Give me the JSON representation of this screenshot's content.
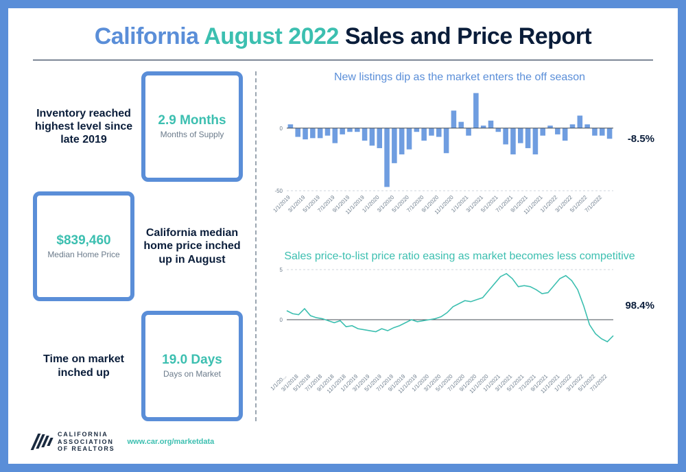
{
  "title": {
    "pre": "California ",
    "accent": "August 2022",
    "post": " Sales and Price Report"
  },
  "stats": {
    "inventory": {
      "text": "Inventory reached highest level since late 2019",
      "value": "2.9 Months",
      "label": "Months of Supply"
    },
    "median": {
      "text": "California median home price inched up in August",
      "value": "$839,460",
      "label": "Median Home Price"
    },
    "days": {
      "text": "Time on market inched up",
      "value": "19.0 Days",
      "label": "Days on Market"
    }
  },
  "chart1": {
    "type": "bar",
    "title": "New listings dip as the market enters the off season",
    "title_color": "#5a8ed8",
    "bar_color": "#6f9de0",
    "grid_color": "#cfd6dd",
    "axis_color": "#444c56",
    "end_label": "-8.5%",
    "ylim": [
      -50,
      30
    ],
    "yticks": [
      -50,
      0
    ],
    "categories": [
      "1/1/2019",
      "3/1/2019",
      "5/1/2019",
      "7/1/2019",
      "9/1/2019",
      "11/1/2019",
      "1/1/2020",
      "3/1/2020",
      "5/1/2020",
      "7/1/2020",
      "9/1/2020",
      "11/1/2020",
      "1/1/2021",
      "3/1/2021",
      "5/1/2021",
      "7/1/2021",
      "9/1/2021",
      "11/1/2021",
      "1/1/2022",
      "3/1/2022",
      "5/1/2022",
      "7/1/2022"
    ],
    "values": [
      3,
      -7,
      -9,
      -8,
      -8,
      -6,
      -12,
      -5,
      -3,
      -3,
      -10,
      -14,
      -16,
      -47,
      -28,
      -21,
      -17,
      -3,
      -10,
      -6,
      -7,
      -20,
      14,
      5,
      -6,
      28,
      2,
      6,
      -3,
      -13,
      -21,
      -12,
      -16,
      -21,
      -6,
      2,
      -5,
      -10,
      3,
      10,
      3,
      -6,
      -6,
      -8.5
    ]
  },
  "chart2": {
    "type": "line",
    "title": "Sales price-to-list price ratio easing as market becomes less competitive",
    "title_color": "#3cbfb0",
    "line_color": "#3cbfb0",
    "grid_color": "#cfd6dd",
    "axis_color": "#444c56",
    "end_label": "98.4%",
    "ylim": [
      -5,
      5
    ],
    "yticks": [
      0,
      5
    ],
    "categories": [
      "1/1/20...",
      "3/1/2018",
      "5/1/2018",
      "7/1/2018",
      "9/1/2018",
      "11/1/2018",
      "1/1/2019",
      "3/1/2019",
      "5/1/2019",
      "7/1/2019",
      "9/1/2019",
      "11/1/2019",
      "1/1/2020",
      "3/1/2020",
      "5/1/2020",
      "7/1/2020",
      "9/1/2020",
      "11/1/2020",
      "1/1/2021",
      "3/1/2021",
      "5/1/2021",
      "7/1/2021",
      "9/1/2021",
      "11/1/2021",
      "1/1/2022",
      "3/1/2022",
      "5/1/2022",
      "7/1/2022"
    ],
    "values": [
      0.9,
      0.6,
      0.5,
      1.1,
      0.4,
      0.2,
      0.1,
      -0.1,
      -0.3,
      -0.1,
      -0.7,
      -0.6,
      -0.9,
      -1.0,
      -1.1,
      -1.2,
      -0.9,
      -1.1,
      -0.8,
      -0.6,
      -0.3,
      0.0,
      -0.2,
      -0.1,
      0.0,
      0.1,
      0.3,
      0.7,
      1.3,
      1.6,
      1.9,
      1.8,
      2.0,
      2.2,
      2.9,
      3.6,
      4.3,
      4.6,
      4.1,
      3.3,
      3.4,
      3.3,
      3.0,
      2.6,
      2.7,
      3.4,
      4.1,
      4.4,
      3.9,
      3.0,
      1.4,
      -0.5,
      -1.4,
      -1.9,
      -2.2,
      -1.6
    ]
  },
  "footer": {
    "org_line1": "CALIFORNIA",
    "org_line2": "ASSOCIATION",
    "org_line3": "OF REALTORS",
    "url": "www.car.org/marketdata"
  },
  "style": {
    "border_color": "#5a8ed8",
    "teal": "#3cbfb0",
    "dark": "#0a1d3a"
  }
}
